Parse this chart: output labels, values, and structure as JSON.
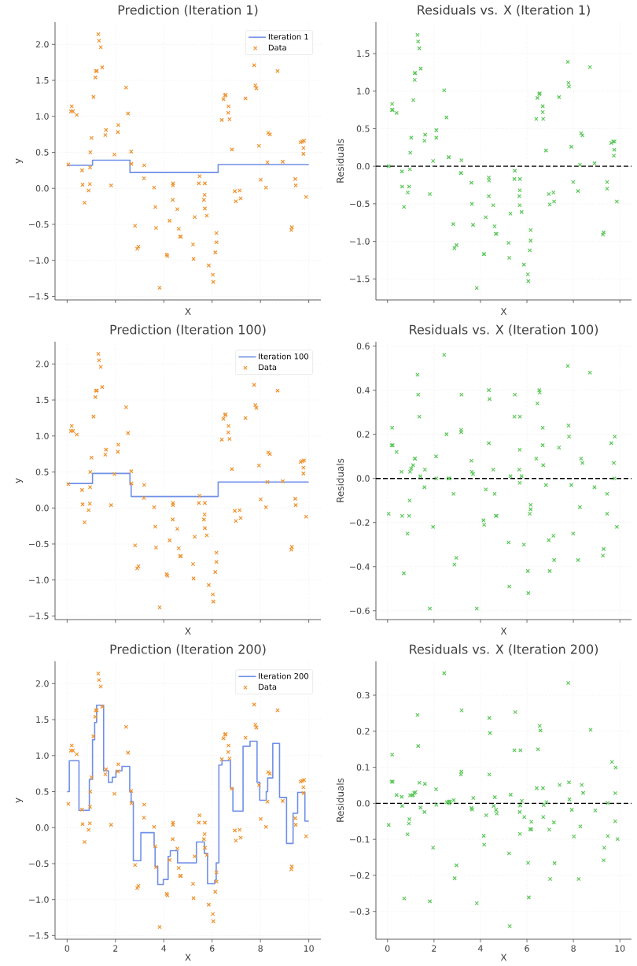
{
  "chart_data": [
    {
      "type": "scatter",
      "title": "Prediction (Iteration 1)",
      "xlabel": "X",
      "ylabel": "y",
      "xlim": [
        -0.5,
        10.5
      ],
      "ylim": [
        -1.55,
        2.31
      ],
      "xticks": [
        0,
        2,
        4,
        6,
        8,
        10
      ],
      "yticks": [
        {
          "value": -1.5,
          "label": "−1.5"
        },
        {
          "value": -1.0,
          "label": "−1.0"
        },
        {
          "value": -0.5,
          "label": "−0.5"
        },
        {
          "value": 0,
          "label": "0.0"
        },
        {
          "value": 0.5,
          "label": "0.5"
        },
        {
          "value": 1.0,
          "label": "1.0"
        },
        {
          "value": 1.5,
          "label": "1.5"
        },
        {
          "value": 2.0,
          "label": "2.0"
        }
      ],
      "tick_labels": "y",
      "grid": true,
      "legend": "top right",
      "marker": "cross",
      "series": [
        {
          "name": "Iteration 1",
          "type": "step",
          "marker": "none",
          "color": "#6f8fe8",
          "x": [
            0,
            1.05,
            2.6,
            6.25,
            10
          ],
          "values": [
            0.32,
            0.39,
            0.22,
            0.33,
            0.33
          ]
        },
        {
          "name": "Data",
          "type": "scatter",
          "color": "#f0922e",
          "x": [
            0.05,
            0.19,
            0.16,
            0.24,
            0.4,
            0.62,
            0.64,
            0.72,
            0.89,
            0.94,
            0.95,
            0.96,
            1.01,
            1.09,
            1.17,
            1.19,
            1.23,
            1.29,
            1.32,
            1.39,
            1.45,
            1.58,
            1.61,
            1.82,
            1.96,
            2.1,
            2.12,
            2.44,
            2.52,
            2.65,
            2.66,
            2.81,
            2.9,
            2.95,
            3.18,
            3.19,
            3.6,
            3.65,
            3.68,
            3.83,
            4.12,
            4.15,
            4.24,
            4.38,
            4.38,
            4.37,
            4.56,
            4.62,
            4.67,
            4.71,
            5.21,
            5.23,
            5.28,
            5.48,
            5.45,
            5.7,
            5.69,
            5.66,
            5.7,
            5.78,
            5.86,
            6.03,
            6.05,
            6.13,
            6.18,
            6.18,
            6.4,
            6.47,
            6.53,
            6.56,
            6.68,
            6.67,
            6.72,
            6.82,
            6.94,
            6.98,
            7.14,
            7.18,
            7.38,
            7.74,
            7.79,
            7.83,
            7.94,
            8.01,
            8.23,
            8.29,
            8.32,
            8.39,
            8.71,
            8.92,
            9.28,
            9.3,
            9.44,
            9.46,
            9.66,
            9.73,
            9.8,
            9.78,
            9.78,
            9.89
          ],
          "values": [
            0.33,
            1.14,
            1.07,
            1.07,
            1.02,
            0.25,
            0.05,
            -0.2,
            -0.03,
            0.06,
            0.29,
            0.5,
            0.7,
            1.27,
            1.54,
            1.63,
            1.63,
            2.14,
            2.05,
            1.96,
            1.68,
            0.74,
            0.81,
            0.04,
            0.47,
            0.78,
            0.88,
            1.4,
            1.04,
            0.51,
            0.34,
            -0.52,
            -0.84,
            -0.81,
            0.14,
            0.32,
            0.01,
            -0.26,
            -0.55,
            -1.38,
            -0.92,
            -0.94,
            -0.45,
            0.07,
            0.04,
            -0.16,
            -0.29,
            -0.56,
            -0.67,
            -0.67,
            -0.78,
            -0.98,
            -0.4,
            0.17,
            0.07,
            0.07,
            -0.09,
            -0.16,
            -0.28,
            -0.38,
            -1.07,
            -1.2,
            -1.3,
            -0.89,
            -0.75,
            -0.62,
            0.95,
            1.24,
            1.29,
            1.3,
            1.14,
            1.05,
            0.96,
            0.54,
            -0.04,
            -0.18,
            -0.03,
            -0.14,
            1.25,
            1.71,
            1.43,
            1.39,
            0.59,
            0.12,
            0.01,
            0.36,
            0.77,
            0.75,
            1.63,
            0.37,
            -0.58,
            -0.54,
            0.13,
            0.04,
            0.64,
            0.65,
            0.66,
            0.56,
            0.48,
            -0.12
          ]
        }
      ]
    },
    {
      "type": "scatter",
      "title": "Residuals vs. X (Iteration 1)",
      "xlabel": "X",
      "ylabel": "Residuals",
      "xlim": [
        -0.5,
        10.5
      ],
      "ylim": [
        -1.78,
        1.92
      ],
      "xticks": [
        0,
        2,
        4,
        6,
        8,
        10
      ],
      "yticks": [
        {
          "value": -1.5,
          "label": "−1.5"
        },
        {
          "value": -1.0,
          "label": "−1.0"
        },
        {
          "value": -0.5,
          "label": "−0.5"
        },
        {
          "value": 0,
          "label": "0.0"
        },
        {
          "value": 0.5,
          "label": "0.5"
        },
        {
          "value": 1.0,
          "label": "1.0"
        },
        {
          "value": 1.5,
          "label": "1.5"
        }
      ],
      "tick_labels": "y",
      "grid": true,
      "marker": "cross",
      "ref_lines": [
        {
          "axis": "y",
          "value": 0,
          "color": "#000000",
          "line_style": "dashed"
        }
      ],
      "series": [
        {
          "type": "scatter",
          "color": "#5cc85a",
          "x": [
            0.05,
            0.2,
            0.19,
            0.22,
            0.39,
            0.62,
            0.63,
            0.71,
            0.87,
            0.93,
            0.96,
            0.98,
            1.02,
            1.11,
            1.17,
            1.19,
            1.17,
            1.29,
            1.32,
            1.37,
            1.43,
            1.59,
            1.62,
            1.82,
            1.96,
            2.1,
            2.1,
            2.44,
            2.54,
            2.64,
            2.63,
            2.83,
            2.88,
            2.97,
            3.17,
            3.18,
            3.15,
            3.61,
            3.63,
            3.68,
            3.84,
            4.14,
            4.16,
            4.23,
            4.36,
            4.37,
            4.36,
            4.55,
            4.61,
            4.66,
            4.69,
            5.21,
            5.24,
            5.29,
            5.48,
            5.46,
            5.7,
            5.69,
            5.67,
            5.69,
            5.77,
            5.87,
            6.04,
            6.06,
            6.12,
            6.16,
            6.16,
            6.4,
            6.45,
            6.53,
            6.55,
            6.68,
            6.68,
            6.7,
            6.82,
            6.94,
            6.98,
            7.14,
            7.17,
            7.38,
            7.76,
            7.79,
            7.81,
            7.91,
            7.99,
            8.2,
            8.28,
            8.33,
            8.39,
            8.71,
            8.91,
            9.27,
            9.3,
            9.45,
            9.45,
            9.63,
            9.71,
            9.77,
            9.76,
            9.74,
            9.87
          ],
          "values": [
            0.0,
            0.83,
            0.75,
            0.75,
            0.71,
            -0.07,
            -0.27,
            -0.54,
            -0.35,
            -0.27,
            -0.04,
            0.18,
            0.38,
            0.88,
            1.15,
            1.24,
            1.24,
            1.75,
            1.66,
            1.57,
            1.3,
            0.34,
            0.42,
            -0.37,
            0.07,
            0.38,
            0.48,
            1.01,
            0.65,
            0.12,
            0.12,
            -0.77,
            -1.09,
            -1.05,
            -0.09,
            0.08,
            -0.09,
            -0.22,
            -0.5,
            -0.78,
            -1.62,
            -1.17,
            -1.17,
            -0.68,
            -0.15,
            -0.19,
            -0.4,
            -0.52,
            -0.8,
            -0.9,
            -0.9,
            -1.02,
            -1.22,
            -0.63,
            -0.06,
            -0.17,
            -0.17,
            -0.32,
            -0.4,
            -0.52,
            -0.61,
            -1.31,
            -1.44,
            -1.53,
            -1.12,
            -0.99,
            -0.85,
            0.63,
            0.91,
            0.96,
            0.97,
            0.8,
            0.72,
            0.63,
            0.21,
            -0.37,
            -0.51,
            -0.35,
            -0.47,
            0.92,
            1.39,
            1.11,
            1.06,
            0.26,
            -0.21,
            -0.33,
            0.02,
            0.44,
            0.41,
            1.32,
            0.04,
            -0.91,
            -0.88,
            -0.21,
            -0.3,
            0.31,
            0.33,
            0.33,
            0.22,
            0.14,
            -0.47
          ]
        }
      ]
    },
    {
      "type": "scatter",
      "title": "Prediction (Iteration 100)",
      "xlabel": "X",
      "ylabel": "y",
      "xlim": [
        -0.5,
        10.5
      ],
      "ylim": [
        -1.55,
        2.31
      ],
      "xticks": [
        0,
        2,
        4,
        6,
        8,
        10
      ],
      "yticks": [
        {
          "value": -1.5,
          "label": "−1.5"
        },
        {
          "value": -1.0,
          "label": "−1.0"
        },
        {
          "value": -0.5,
          "label": "−0.5"
        },
        {
          "value": 0,
          "label": "0.0"
        },
        {
          "value": 0.5,
          "label": "0.5"
        },
        {
          "value": 1.0,
          "label": "1.0"
        },
        {
          "value": 1.5,
          "label": "1.5"
        },
        {
          "value": 2.0,
          "label": "2.0"
        }
      ],
      "tick_labels": "y",
      "grid": true,
      "legend": "top right",
      "marker": "cross",
      "series": [
        {
          "name": "Iteration 100",
          "type": "step",
          "marker": "none",
          "color": "#6f8fe8",
          "x": [
            0,
            1.05,
            2.6,
            2.65,
            6.25,
            10
          ],
          "values": [
            0.34,
            0.48,
            0.33,
            0.16,
            0.36,
            0.36
          ]
        },
        {
          "name": "Data",
          "type": "scatter",
          "color": "#f0922e",
          "x": [
            0.05,
            0.19,
            0.16,
            0.24,
            0.4,
            0.62,
            0.64,
            0.72,
            0.89,
            0.94,
            0.95,
            0.96,
            1.01,
            1.09,
            1.17,
            1.19,
            1.23,
            1.29,
            1.32,
            1.39,
            1.45,
            1.58,
            1.61,
            1.82,
            1.96,
            2.1,
            2.12,
            2.44,
            2.52,
            2.65,
            2.66,
            2.81,
            2.9,
            2.95,
            3.18,
            3.19,
            3.6,
            3.65,
            3.68,
            3.83,
            4.12,
            4.15,
            4.24,
            4.38,
            4.38,
            4.37,
            4.56,
            4.62,
            4.67,
            4.71,
            5.21,
            5.23,
            5.28,
            5.48,
            5.45,
            5.7,
            5.69,
            5.66,
            5.7,
            5.78,
            5.86,
            6.03,
            6.05,
            6.13,
            6.18,
            6.18,
            6.4,
            6.47,
            6.53,
            6.56,
            6.68,
            6.67,
            6.72,
            6.82,
            6.94,
            6.98,
            7.14,
            7.18,
            7.38,
            7.74,
            7.79,
            7.83,
            7.94,
            8.01,
            8.23,
            8.29,
            8.32,
            8.39,
            8.71,
            8.92,
            9.28,
            9.3,
            9.44,
            9.46,
            9.66,
            9.73,
            9.8,
            9.78,
            9.78,
            9.89
          ],
          "values": [
            0.33,
            1.14,
            1.07,
            1.07,
            1.02,
            0.25,
            0.05,
            -0.2,
            -0.03,
            0.06,
            0.29,
            0.5,
            0.7,
            1.27,
            1.54,
            1.63,
            1.63,
            2.14,
            2.05,
            1.96,
            1.68,
            0.74,
            0.81,
            0.04,
            0.47,
            0.78,
            0.88,
            1.4,
            1.04,
            0.51,
            0.34,
            -0.52,
            -0.84,
            -0.81,
            0.14,
            0.32,
            0.01,
            -0.26,
            -0.55,
            -1.38,
            -0.92,
            -0.94,
            -0.45,
            0.07,
            0.04,
            -0.16,
            -0.29,
            -0.56,
            -0.67,
            -0.67,
            -0.78,
            -0.98,
            -0.4,
            0.17,
            0.07,
            0.07,
            -0.09,
            -0.16,
            -0.28,
            -0.38,
            -1.07,
            -1.2,
            -1.3,
            -0.89,
            -0.75,
            -0.62,
            0.95,
            1.24,
            1.29,
            1.3,
            1.14,
            1.05,
            0.96,
            0.54,
            -0.04,
            -0.18,
            -0.03,
            -0.14,
            1.25,
            1.71,
            1.43,
            1.39,
            0.59,
            0.12,
            0.01,
            0.36,
            0.77,
            0.75,
            1.63,
            0.37,
            -0.58,
            -0.54,
            0.13,
            0.04,
            0.64,
            0.65,
            0.66,
            0.56,
            0.48,
            -0.12
          ]
        }
      ]
    },
    {
      "type": "scatter",
      "title": "Residuals vs. X (Iteration 100)",
      "xlabel": "X",
      "ylabel": "Residuals",
      "xlim": [
        -0.5,
        10.5
      ],
      "ylim": [
        -0.64,
        0.62
      ],
      "xticks": [
        0,
        2,
        4,
        6,
        8,
        10
      ],
      "yticks": [
        {
          "value": -0.6,
          "label": "−0.6"
        },
        {
          "value": -0.4,
          "label": "−0.4"
        },
        {
          "value": -0.2,
          "label": "−0.2"
        },
        {
          "value": 0,
          "label": "0.0"
        },
        {
          "value": 0.2,
          "label": "0.2"
        },
        {
          "value": 0.4,
          "label": "0.4"
        },
        {
          "value": 0.6,
          "label": "0.6"
        }
      ],
      "tick_labels": "y",
      "grid": true,
      "marker": "cross",
      "ref_lines": [
        {
          "axis": "y",
          "value": 0,
          "color": "#000000",
          "line_style": "dashed"
        }
      ],
      "series": [
        {
          "type": "scatter",
          "color": "#5cc85a",
          "x": [
            0.05,
            0.2,
            0.18,
            0.22,
            0.39,
            0.6,
            0.63,
            0.7,
            0.86,
            0.95,
            0.93,
            0.97,
            1.02,
            1.1,
            1.17,
            1.19,
            1.29,
            1.32,
            1.37,
            1.41,
            1.59,
            1.61,
            1.82,
            1.96,
            2.09,
            2.1,
            2.44,
            2.54,
            2.63,
            2.66,
            2.84,
            2.88,
            2.96,
            3.17,
            3.17,
            3.18,
            3.61,
            3.63,
            3.68,
            3.84,
            4.13,
            4.16,
            4.23,
            4.36,
            4.39,
            4.36,
            4.55,
            4.61,
            4.66,
            4.69,
            5.21,
            5.24,
            5.29,
            5.48,
            5.46,
            5.7,
            5.69,
            5.67,
            5.69,
            5.77,
            5.87,
            6.04,
            6.06,
            6.12,
            6.16,
            6.16,
            6.4,
            6.45,
            6.53,
            6.55,
            6.68,
            6.68,
            6.7,
            6.82,
            6.94,
            6.98,
            7.14,
            7.17,
            7.38,
            7.76,
            7.79,
            7.81,
            7.91,
            7.99,
            8.2,
            8.28,
            8.33,
            8.39,
            8.71,
            8.91,
            9.27,
            9.3,
            9.45,
            9.45,
            9.63,
            9.78,
            9.74,
            9.76,
            9.87
          ],
          "values": [
            -0.16,
            0.23,
            0.15,
            0.15,
            0.12,
            0.03,
            -0.17,
            -0.43,
            -0.25,
            -0.1,
            -0.17,
            0.03,
            0.045,
            0.06,
            0.09,
            0.09,
            0.47,
            0.38,
            0.28,
            0.01,
            -0.04,
            0.04,
            -0.59,
            -0.22,
            0.1,
            0.0,
            0.56,
            0.2,
            0.0,
            0.0,
            -0.07,
            -0.39,
            -0.36,
            0.21,
            0.22,
            0.38,
            0.08,
            0.03,
            0.02,
            -0.59,
            -0.19,
            -0.21,
            -0.05,
            0.4,
            0.36,
            0.16,
            0.04,
            -0.07,
            -0.17,
            -0.17,
            -0.29,
            -0.49,
            0.01,
            0.38,
            0.28,
            0.28,
            0.13,
            0.04,
            -0.02,
            0.01,
            -0.3,
            -0.42,
            -0.52,
            -0.16,
            -0.14,
            -0.12,
            0.09,
            0.34,
            0.4,
            0.39,
            0.23,
            0.15,
            0.06,
            -0.03,
            -0.28,
            -0.42,
            -0.26,
            -0.37,
            0.14,
            0.51,
            0.24,
            0.19,
            -0.03,
            -0.25,
            -0.37,
            -0.13,
            0.09,
            0.07,
            0.48,
            -0.04,
            -0.35,
            -0.32,
            -0.07,
            -0.16,
            0.16,
            0.19,
            0.07,
            0.0,
            -0.22
          ]
        }
      ]
    },
    {
      "type": "scatter",
      "title": "Prediction (Iteration 200)",
      "xlabel": "X",
      "ylabel": "y",
      "xlim": [
        -0.5,
        10.5
      ],
      "ylim": [
        -1.55,
        2.31
      ],
      "xticks": [
        0,
        2,
        4,
        6,
        8,
        10
      ],
      "yticks": [
        {
          "value": -1.5,
          "label": "−1.5"
        },
        {
          "value": -1.0,
          "label": "−1.0"
        },
        {
          "value": -0.5,
          "label": "−0.5"
        },
        {
          "value": 0,
          "label": "0.0"
        },
        {
          "value": 0.5,
          "label": "0.5"
        },
        {
          "value": 1.0,
          "label": "1.0"
        },
        {
          "value": 1.5,
          "label": "1.5"
        },
        {
          "value": 2.0,
          "label": "2.0"
        }
      ],
      "grid": true,
      "legend": "top right",
      "marker": "cross",
      "series": [
        {
          "name": "Iteration 200",
          "type": "step",
          "marker": "none",
          "color": "#6f8fe8",
          "x": [
            0,
            0.09,
            0.49,
            0.92,
            1.05,
            1.14,
            1.22,
            1.51,
            1.71,
            1.87,
            2.02,
            2.27,
            2.59,
            2.65,
            2.74,
            3.05,
            3.6,
            3.64,
            3.75,
            3.98,
            4.18,
            4.27,
            4.57,
            5.35,
            5.68,
            5.81,
            6.11,
            6.17,
            6.28,
            6.41,
            6.76,
            6.86,
            7.28,
            7.57,
            7.86,
            7.97,
            8.24,
            8.3,
            8.51,
            8.79,
            9.08,
            9.35,
            9.54,
            9.84,
            10
          ],
          "values": [
            0.5,
            0.93,
            0.24,
            0.67,
            1.22,
            1.46,
            1.7,
            0.79,
            0.63,
            0.7,
            0.79,
            0.85,
            0.5,
            0.36,
            -0.46,
            -0.07,
            -0.26,
            -0.54,
            -0.79,
            -0.72,
            -0.4,
            -0.32,
            -0.49,
            -0.2,
            -0.36,
            -0.78,
            -0.73,
            -0.49,
            0.87,
            0.93,
            0.55,
            0.23,
            1.13,
            1.2,
            0.63,
            0.38,
            0.5,
            0.69,
            1.17,
            0.42,
            -0.22,
            0.2,
            0.49,
            0.09,
            0.09
          ]
        },
        {
          "name": "Data",
          "type": "scatter",
          "color": "#f0922e",
          "x": [
            0.05,
            0.19,
            0.16,
            0.24,
            0.4,
            0.62,
            0.64,
            0.72,
            0.89,
            0.94,
            0.95,
            0.96,
            1.01,
            1.09,
            1.17,
            1.19,
            1.23,
            1.29,
            1.32,
            1.39,
            1.45,
            1.58,
            1.61,
            1.82,
            1.96,
            2.1,
            2.12,
            2.44,
            2.52,
            2.65,
            2.66,
            2.81,
            2.9,
            2.95,
            3.18,
            3.19,
            3.6,
            3.65,
            3.68,
            3.83,
            4.12,
            4.15,
            4.24,
            4.38,
            4.38,
            4.37,
            4.56,
            4.62,
            4.67,
            4.71,
            5.21,
            5.23,
            5.28,
            5.48,
            5.45,
            5.7,
            5.69,
            5.66,
            5.7,
            5.78,
            5.86,
            6.03,
            6.05,
            6.13,
            6.18,
            6.18,
            6.4,
            6.47,
            6.53,
            6.56,
            6.68,
            6.67,
            6.72,
            6.82,
            6.94,
            6.98,
            7.14,
            7.18,
            7.38,
            7.74,
            7.79,
            7.83,
            7.94,
            8.01,
            8.23,
            8.29,
            8.32,
            8.39,
            8.71,
            8.92,
            9.28,
            9.3,
            9.44,
            9.46,
            9.66,
            9.73,
            9.8,
            9.78,
            9.78,
            9.89
          ],
          "values": [
            0.33,
            1.14,
            1.07,
            1.07,
            1.02,
            0.25,
            0.05,
            -0.2,
            -0.03,
            0.06,
            0.29,
            0.5,
            0.7,
            1.27,
            1.54,
            1.63,
            1.63,
            2.14,
            2.05,
            1.96,
            1.68,
            0.74,
            0.81,
            0.04,
            0.47,
            0.78,
            0.88,
            1.4,
            1.04,
            0.51,
            0.34,
            -0.52,
            -0.84,
            -0.81,
            0.14,
            0.32,
            0.01,
            -0.26,
            -0.55,
            -1.38,
            -0.92,
            -0.94,
            -0.45,
            0.07,
            0.04,
            -0.16,
            -0.29,
            -0.56,
            -0.67,
            -0.67,
            -0.78,
            -0.98,
            -0.4,
            0.17,
            0.07,
            0.07,
            -0.09,
            -0.16,
            -0.28,
            -0.38,
            -1.07,
            -1.2,
            -1.3,
            -0.89,
            -0.75,
            -0.62,
            0.95,
            1.24,
            1.29,
            1.3,
            1.14,
            1.05,
            0.96,
            0.54,
            -0.04,
            -0.18,
            -0.03,
            -0.14,
            1.25,
            1.71,
            1.43,
            1.39,
            0.59,
            0.12,
            0.01,
            0.36,
            0.77,
            0.75,
            1.63,
            0.37,
            -0.58,
            -0.54,
            0.13,
            0.04,
            0.64,
            0.65,
            0.66,
            0.56,
            0.48,
            -0.12
          ]
        }
      ]
    },
    {
      "type": "scatter",
      "title": "Residuals vs. X (Iteration 200)",
      "xlabel": "X",
      "ylabel": "Residuals",
      "xlim": [
        -0.5,
        10.5
      ],
      "ylim": [
        -0.377,
        0.394
      ],
      "xticks": [
        0,
        2,
        4,
        6,
        8,
        10
      ],
      "yticks": [
        {
          "value": -0.3,
          "label": "−0.3"
        },
        {
          "value": -0.2,
          "label": "−0.2"
        },
        {
          "value": -0.1,
          "label": "−0.1"
        },
        {
          "value": 0,
          "label": "0.0"
        },
        {
          "value": 0.1,
          "label": "0.1"
        },
        {
          "value": 0.2,
          "label": "0.2"
        },
        {
          "value": 0.3,
          "label": "0.3"
        }
      ],
      "grid": true,
      "marker": "cross",
      "ref_lines": [
        {
          "axis": "y",
          "value": 0,
          "color": "#000000",
          "line_style": "dashed"
        }
      ],
      "series": [
        {
          "type": "scatter",
          "color": "#5cc85a",
          "x": [
            0.05,
            0.2,
            0.18,
            0.22,
            0.39,
            0.61,
            0.63,
            0.72,
            0.86,
            0.94,
            0.92,
            0.97,
            1.05,
            1.1,
            1.15,
            1.2,
            1.29,
            1.32,
            1.37,
            1.42,
            1.59,
            1.61,
            1.82,
            1.96,
            2.09,
            2.1,
            2.44,
            2.55,
            2.63,
            2.66,
            2.69,
            2.85,
            2.89,
            2.97,
            3.16,
            3.18,
            3.19,
            3.61,
            3.64,
            3.69,
            3.84,
            4.14,
            4.16,
            4.25,
            4.38,
            4.41,
            4.38,
            4.57,
            4.62,
            4.67,
            4.7,
            5.23,
            5.26,
            5.3,
            5.5,
            5.46,
            5.72,
            5.71,
            5.69,
            5.7,
            5.78,
            5.89,
            6.05,
            6.08,
            6.14,
            6.19,
            6.19,
            6.42,
            6.48,
            6.55,
            6.58,
            6.69,
            6.7,
            6.72,
            6.84,
            6.96,
            7.0,
            7.16,
            7.19,
            7.41,
            7.78,
            7.81,
            7.83,
            7.93,
            8.02,
            8.23,
            8.3,
            8.36,
            8.42,
            8.74,
            8.94,
            9.3,
            9.33,
            9.48,
            9.48,
            9.66,
            9.82,
            9.8,
            9.8,
            9.9
          ],
          "values": [
            -0.06,
            0.135,
            0.06,
            0.06,
            0.023,
            0.018,
            -0.007,
            -0.264,
            -0.086,
            -0.044,
            -0.056,
            0.022,
            0.022,
            0.023,
            0.029,
            0.031,
            0.245,
            0.159,
            0.057,
            -0.012,
            -0.024,
            0.054,
            -0.272,
            -0.123,
            0.039,
            -0.004,
            0.361,
            0.003,
            0.005,
            0.0,
            0.005,
            0.009,
            -0.208,
            -0.172,
            0.08,
            0.088,
            0.258,
            -0.013,
            -0.017,
            0.015,
            -0.277,
            -0.09,
            -0.115,
            -0.033,
            0.237,
            0.195,
            0.08,
            -0.007,
            0.017,
            -0.018,
            -0.028,
            -0.139,
            -0.341,
            0.024,
            0.253,
            0.147,
            0.147,
            -0.006,
            -0.024,
            -0.085,
            0.007,
            -0.038,
            -0.165,
            -0.261,
            -0.072,
            -0.072,
            -0.051,
            0.042,
            0.15,
            0.215,
            0.202,
            0.042,
            -0.038,
            -0.005,
            0.003,
            -0.073,
            -0.21,
            -0.053,
            -0.166,
            0.051,
            0.334,
            0.058,
            0.011,
            -0.018,
            -0.092,
            -0.21,
            -0.064,
            0.051,
            0.029,
            0.204,
            -0.02,
            -0.158,
            -0.123,
            -0.091,
            0.001,
            0.115,
            0.099,
            0.028,
            -0.05,
            -0.099
          ]
        }
      ]
    }
  ]
}
